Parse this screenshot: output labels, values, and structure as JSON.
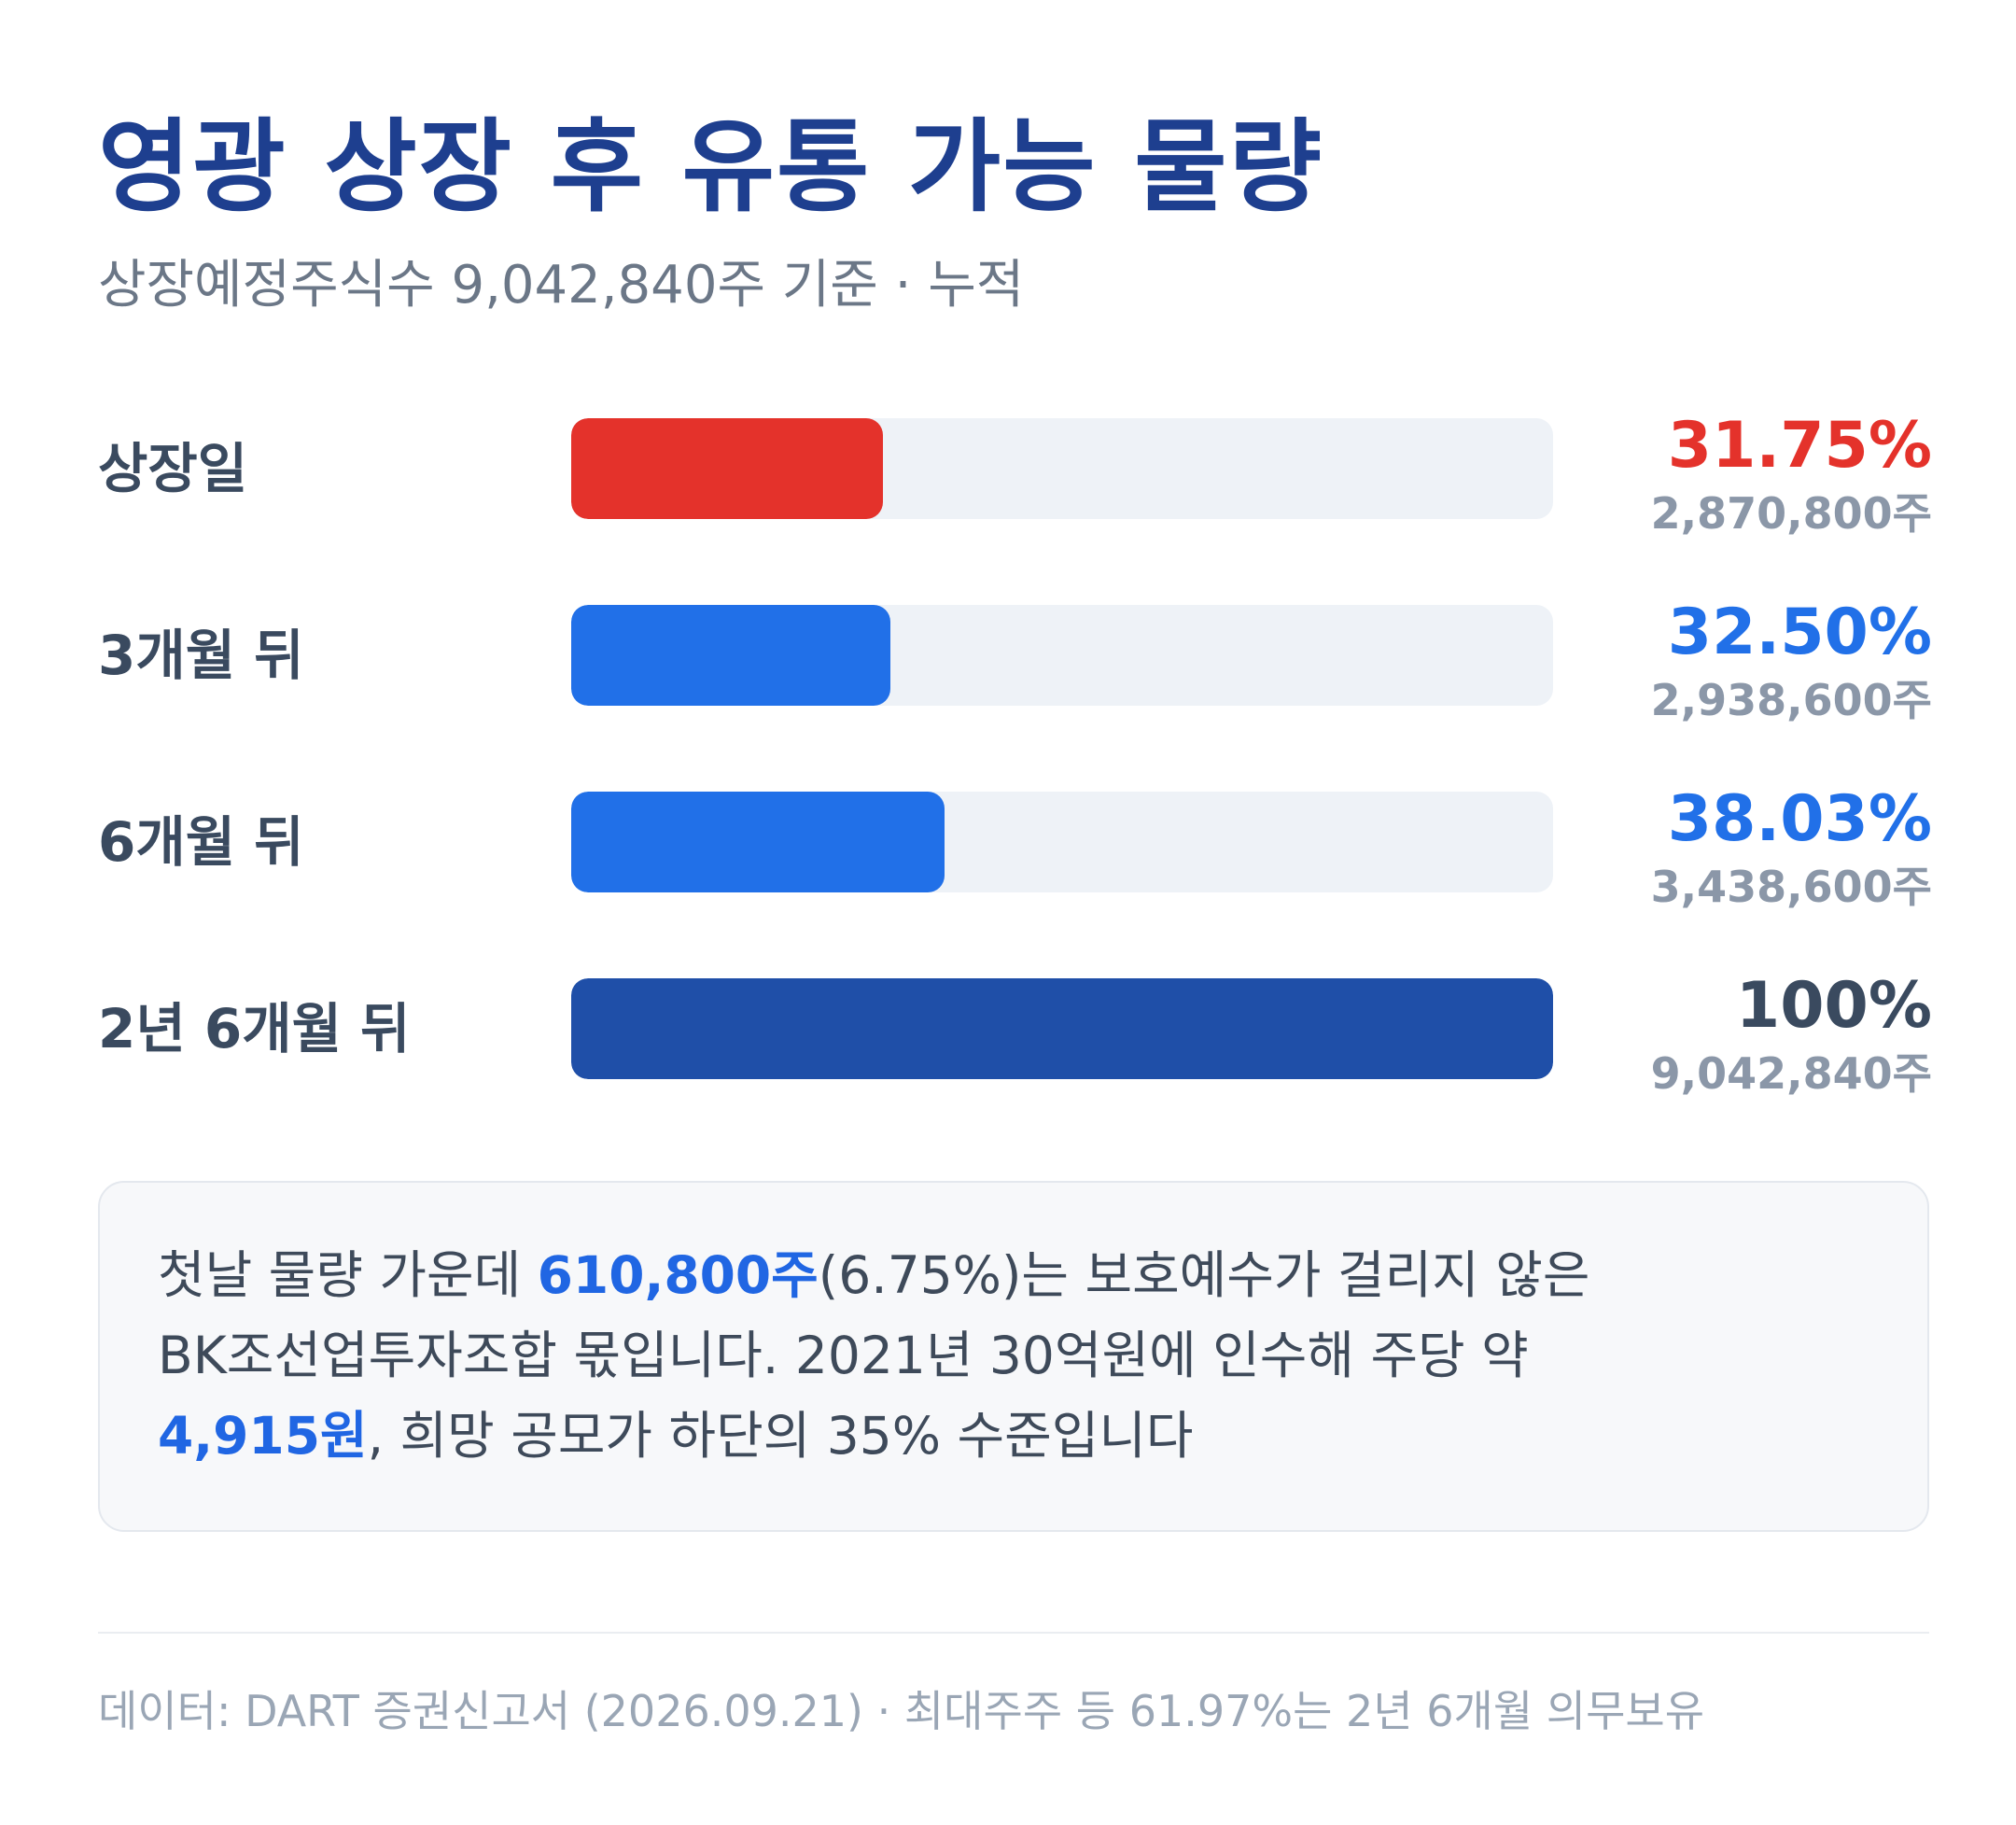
{
  "header": {
    "title": "영광 상장 후 유통 가능 물량",
    "subtitle": "상장예정주식수 9,042,840주 기준 · 누적"
  },
  "chart_data": {
    "type": "bar",
    "orientation": "horizontal",
    "categories": [
      "상장일",
      "3개월 뒤",
      "6개월 뒤",
      "2년 6개월 뒤"
    ],
    "values": [
      31.75,
      32.5,
      38.03,
      100
    ],
    "value_labels": [
      "31.75%",
      "32.50%",
      "38.03%",
      "100%"
    ],
    "share_labels": [
      "2,870,800주",
      "2,938,600주",
      "3,438,600주",
      "9,042,840주"
    ],
    "shares": [
      2870800,
      2938600,
      3438600,
      9042840
    ],
    "xlim": [
      0,
      100
    ],
    "colors": [
      "#e4322b",
      "#2170e8",
      "#2170e8",
      "#1f4fa8"
    ],
    "label_colors": [
      "#e4322b",
      "#2170e8",
      "#2170e8",
      "#3a4a5f"
    ]
  },
  "note": {
    "line1_pre": "첫날 물량 가운데 ",
    "line1_hl": "610,800주",
    "line1_post": "(6.75%)는 보호예수가 걸리지 않은",
    "line2": "BK조선업투자조합 몫입니다. 2021년 30억원에 인수해 주당 약",
    "line3_hl": "4,915원",
    "line3_post": ", 희망 공모가 하단의 35% 수준입니다"
  },
  "footer": {
    "text": "데이터: DART 증권신고서 (2026.09.21) · 최대주주 등 61.97%는 2년 6개월 의무보유"
  }
}
